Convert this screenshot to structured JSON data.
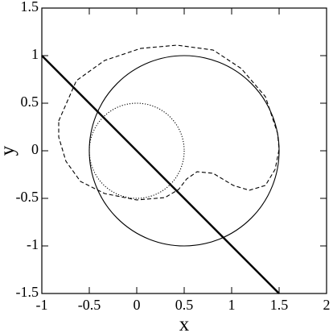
{
  "chart_data": {
    "type": "line",
    "x_label": "x",
    "y_label": "y",
    "xlim": [
      -1,
      2
    ],
    "ylim": [
      -1.5,
      1.5
    ],
    "xticks": [
      -1,
      -0.5,
      0,
      0.5,
      1,
      1.5,
      2
    ],
    "yticks": [
      -1.5,
      -1,
      -0.5,
      0,
      0.5,
      1,
      1.5
    ],
    "series": [
      {
        "kind": "line",
        "style": "thick",
        "color": "#000000",
        "x": [
          -1,
          1.5
        ],
        "values": [
          1,
          -1.5
        ]
      },
      {
        "kind": "circle",
        "style": "solid",
        "color": "#000000",
        "center": [
          0.5,
          0
        ],
        "radius": 1
      },
      {
        "kind": "circle",
        "style": "dotted",
        "color": "#000000",
        "center": [
          0,
          0
        ],
        "radius": 0.5
      },
      {
        "kind": "closed",
        "style": "dashed",
        "color": "#000000",
        "x": [
          -0.822,
          -0.636,
          -0.339,
          0.042,
          0.424,
          0.805,
          1.102,
          1.356,
          1.483,
          1.5,
          1.458,
          1.356,
          1.186,
          1.017,
          0.805,
          0.636,
          0.525,
          0.441,
          0.297,
          0.0,
          -0.339,
          -0.593,
          -0.746,
          -0.822
        ],
        "values": [
          0.314,
          0.737,
          0.949,
          1.076,
          1.11,
          1.059,
          0.864,
          0.568,
          0.186,
          0.017,
          -0.195,
          -0.364,
          -0.415,
          -0.364,
          -0.237,
          -0.22,
          -0.297,
          -0.407,
          -0.492,
          -0.517,
          -0.449,
          -0.322,
          -0.11,
          0.144
        ]
      }
    ]
  }
}
